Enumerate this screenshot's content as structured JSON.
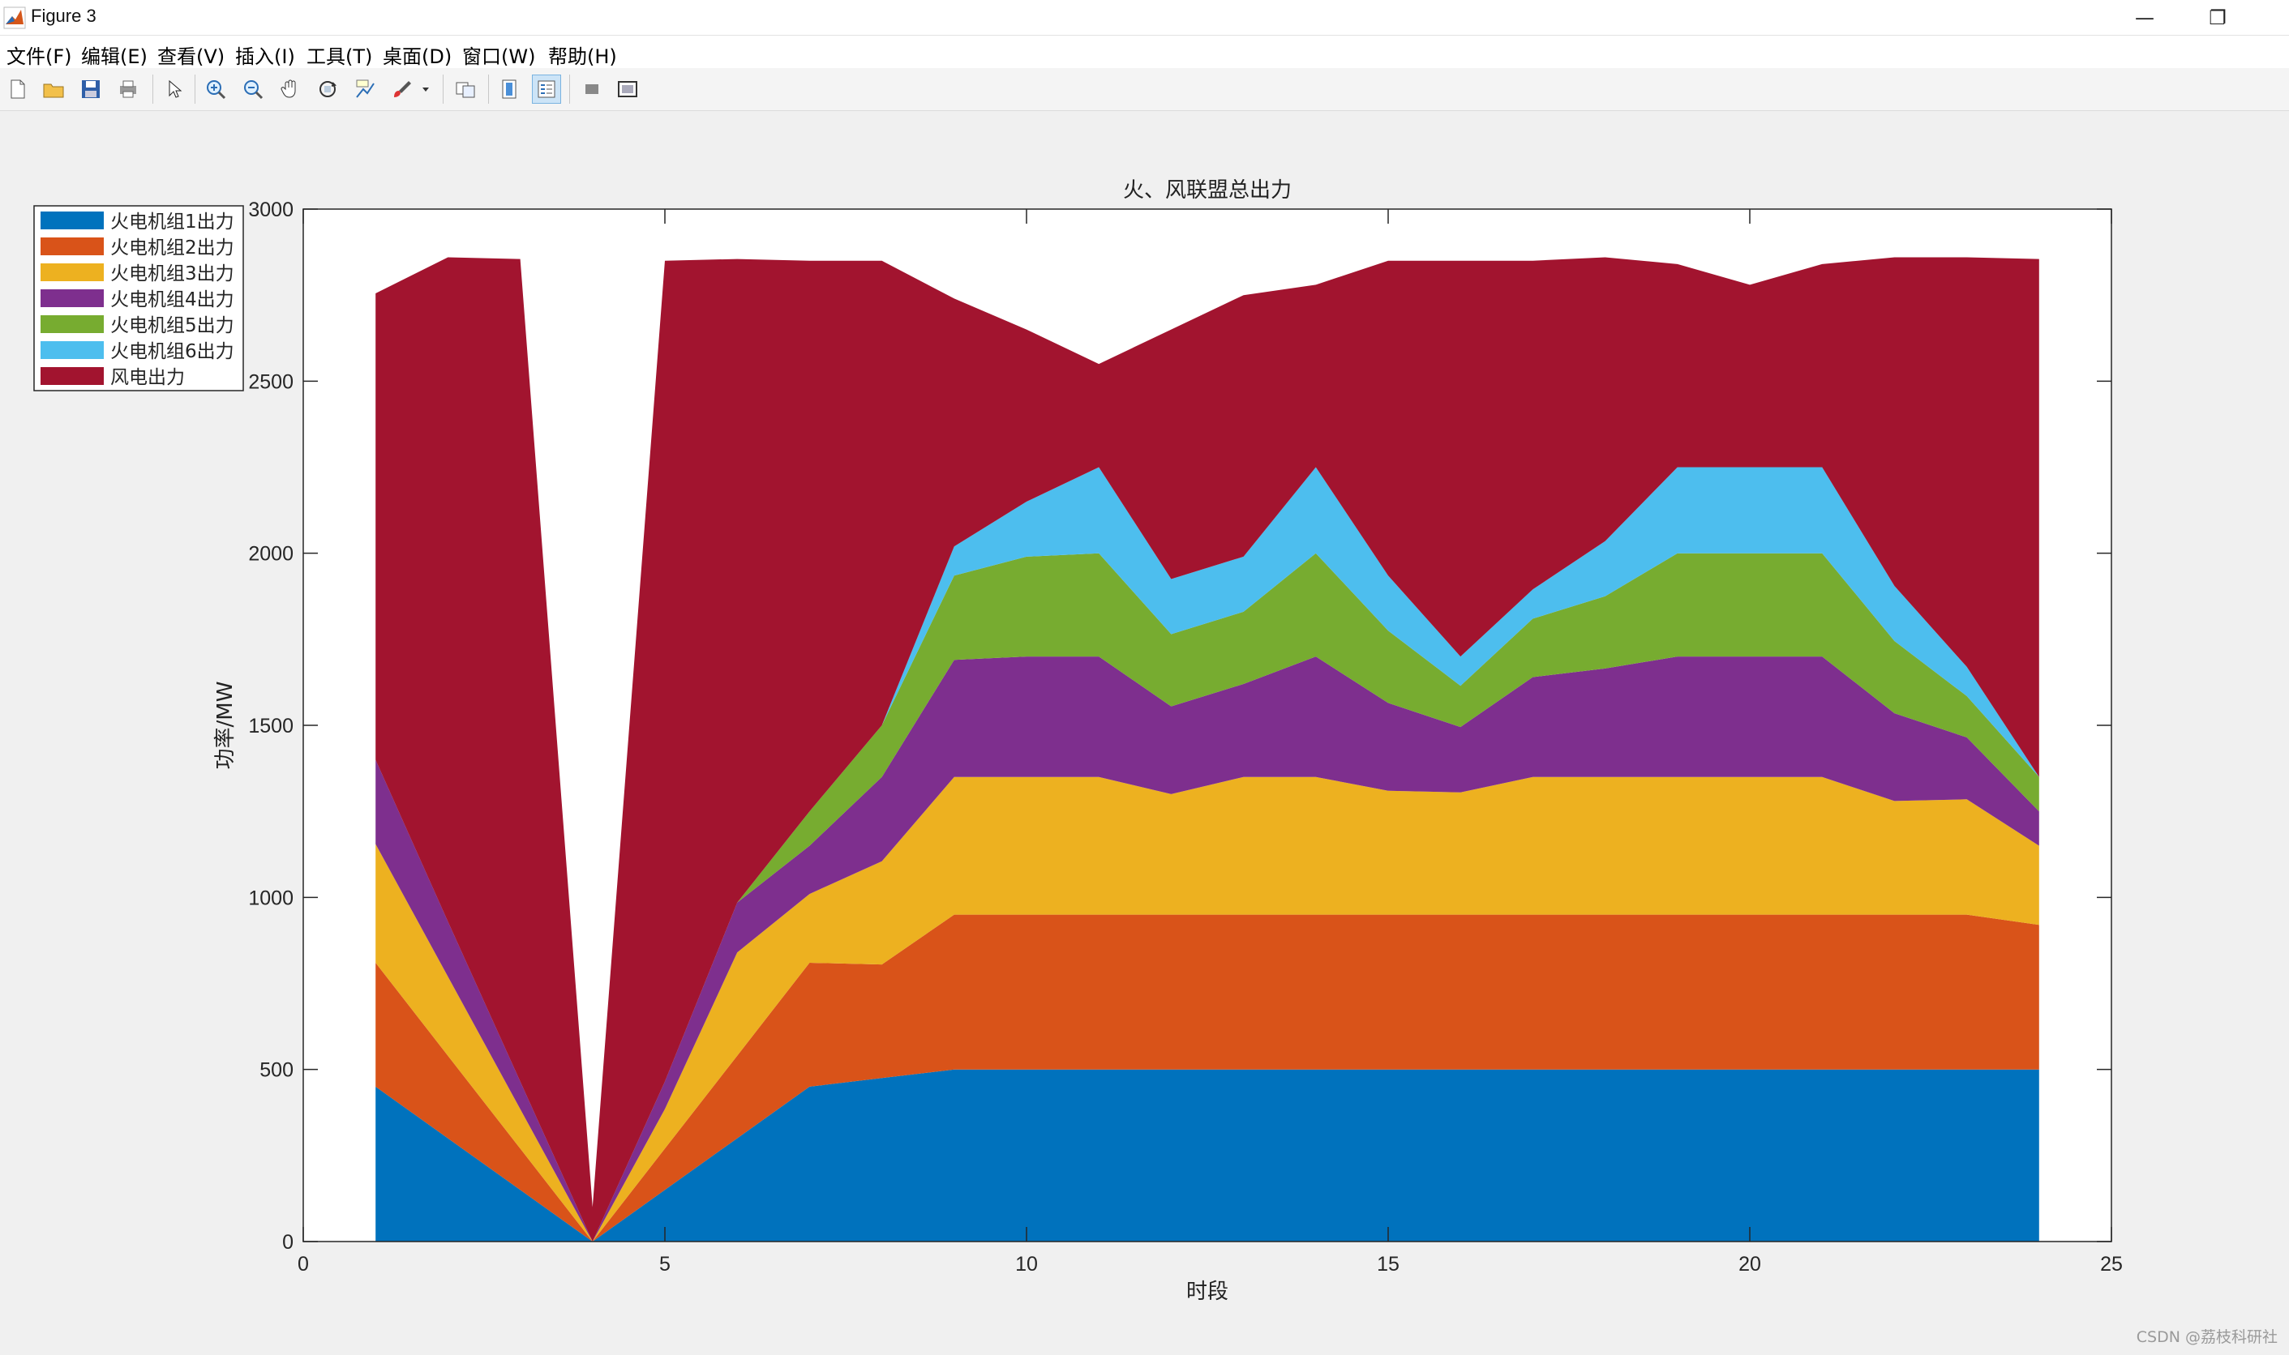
{
  "window": {
    "title": "Figure 3",
    "controls": {
      "minimize": "—",
      "restore": "❐"
    }
  },
  "menu": [
    "文件(F)",
    "编辑(E)",
    "查看(V)",
    "插入(I)",
    "工具(T)",
    "桌面(D)",
    "窗口(W)",
    "帮助(H)"
  ],
  "toolbar": [
    {
      "name": "new-figure-icon"
    },
    {
      "name": "open-file-icon"
    },
    {
      "name": "save-icon"
    },
    {
      "name": "print-icon"
    },
    {
      "name": "pointer-icon"
    },
    {
      "name": "zoom-in-icon"
    },
    {
      "name": "zoom-out-icon"
    },
    {
      "name": "pan-icon"
    },
    {
      "name": "rotate-3d-icon"
    },
    {
      "name": "data-cursor-icon"
    },
    {
      "name": "brush-icon"
    },
    {
      "name": "brush-dropdown-icon"
    },
    {
      "name": "link-plot-icon"
    },
    {
      "name": "colorbar-icon"
    },
    {
      "name": "legend-icon"
    },
    {
      "name": "hide-plot-tools-icon"
    },
    {
      "name": "show-plot-tools-icon"
    }
  ],
  "watermark": "CSDN @荔枝科研社",
  "chart_data": {
    "type": "area",
    "stacked": true,
    "title": "火、风联盟总出力",
    "xlabel": "时段",
    "ylabel": "功率/MW",
    "xlim": [
      0,
      25
    ],
    "ylim": [
      0,
      3000
    ],
    "xticks": [
      0,
      5,
      10,
      15,
      20,
      25
    ],
    "yticks": [
      0,
      500,
      1000,
      1500,
      2000,
      2500,
      3000
    ],
    "grid": false,
    "legend_position": "outside-top-left",
    "x": [
      1,
      2,
      3,
      4,
      5,
      6,
      7,
      8,
      9,
      10,
      11,
      12,
      13,
      14,
      15,
      16,
      17,
      18,
      19,
      20,
      21,
      22,
      23,
      24
    ],
    "series": [
      {
        "name": "火电机组1出力",
        "color": "#0072BD",
        "values": [
          450,
          300,
          150,
          0,
          150,
          300,
          450,
          475,
          500,
          500,
          500,
          500,
          500,
          500,
          500,
          500,
          500,
          500,
          500,
          500,
          500,
          500,
          500,
          500
        ]
      },
      {
        "name": "火电机组2出力",
        "color": "#D95319",
        "values": [
          360,
          240,
          120,
          0,
          120,
          240,
          360,
          330,
          450,
          450,
          450,
          450,
          450,
          450,
          450,
          450,
          450,
          450,
          450,
          450,
          450,
          450,
          450,
          420
        ]
      },
      {
        "name": "火电机组3出力",
        "color": "#EDB120",
        "values": [
          345,
          230,
          115,
          0,
          115,
          300,
          200,
          300,
          400,
          400,
          400,
          350,
          400,
          400,
          360,
          355,
          400,
          400,
          400,
          400,
          400,
          330,
          335,
          230
        ]
      },
      {
        "name": "火电机组4出力",
        "color": "#7E2F8E",
        "values": [
          245,
          160,
          80,
          0,
          80,
          145,
          140,
          245,
          340,
          350,
          350,
          255,
          270,
          350,
          255,
          190,
          290,
          315,
          350,
          350,
          350,
          255,
          180,
          100
        ]
      },
      {
        "name": "火电机组5出力",
        "color": "#77AC30",
        "values": [
          0,
          0,
          0,
          0,
          0,
          0,
          100,
          150,
          245,
          290,
          300,
          210,
          210,
          300,
          210,
          120,
          170,
          210,
          300,
          300,
          300,
          210,
          120,
          100
        ]
      },
      {
        "name": "火电机组6出力",
        "color": "#4DBEEE",
        "values": [
          0,
          0,
          0,
          0,
          0,
          0,
          0,
          0,
          85,
          160,
          250,
          160,
          160,
          250,
          160,
          85,
          85,
          160,
          250,
          250,
          250,
          160,
          85,
          0
        ]
      },
      {
        "name": "风电出力",
        "color": "#A2142F",
        "values": [
          1355,
          1930,
          2390,
          100,
          2385,
          1870,
          1600,
          1350,
          720,
          500,
          300,
          725,
          760,
          530,
          915,
          1150,
          955,
          825,
          590,
          530,
          590,
          955,
          1190,
          1505
        ]
      }
    ]
  }
}
